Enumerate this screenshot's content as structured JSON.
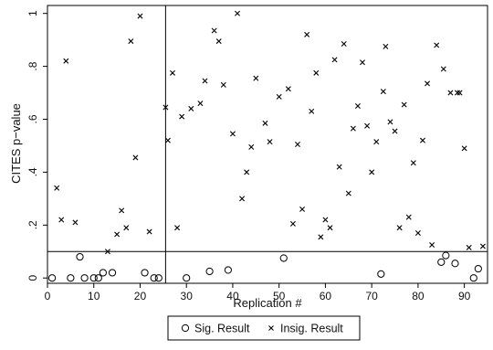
{
  "chart_data": {
    "type": "scatter",
    "xlabel": "Replication #",
    "ylabel": "CITES p−value",
    "xlim": [
      0,
      95
    ],
    "ylim": [
      -0.02,
      1.03
    ],
    "x_ticks": [
      0,
      10,
      20,
      30,
      40,
      50,
      60,
      70,
      80,
      90
    ],
    "y_ticks": [
      0,
      0.2,
      0.4,
      0.6,
      0.8,
      1
    ],
    "y_tick_labels": [
      "0",
      ".2",
      ".4",
      ".6",
      ".8",
      "1"
    ],
    "reference_lines": {
      "vertical_x": 25.5,
      "horizontal_y": 0.1
    },
    "grid": false,
    "legend_position": "bottom",
    "series": [
      {
        "name": "Sig. Result",
        "marker": "circle",
        "x": [
          1,
          5,
          7,
          8,
          10,
          11,
          12,
          14,
          21,
          23,
          24,
          30,
          35,
          39,
          51,
          72,
          85,
          86,
          88,
          92,
          93
        ],
        "y": [
          0.0,
          0.0,
          0.08,
          0.0,
          0.0,
          0.0,
          0.02,
          0.02,
          0.02,
          0.0,
          0.0,
          0.0,
          0.025,
          0.03,
          0.075,
          0.015,
          0.06,
          0.085,
          0.055,
          0.0,
          0.035
        ]
      },
      {
        "name": "Insig. Result",
        "marker": "x",
        "x": [
          2,
          3,
          4,
          6,
          13,
          15,
          16,
          17,
          18,
          19,
          20,
          22,
          25.5,
          26,
          27,
          28,
          29,
          31,
          33,
          34,
          36,
          37,
          38,
          40,
          41,
          42,
          43,
          44,
          45,
          47,
          48,
          50,
          52,
          53,
          54,
          55,
          56,
          57,
          58,
          59,
          60,
          61,
          62,
          63,
          64,
          65,
          66,
          67,
          68,
          69,
          70,
          71,
          72.5,
          73,
          74,
          75,
          76,
          77,
          78,
          79,
          80,
          81,
          82,
          83,
          84,
          85.5,
          87,
          88.5,
          89,
          90,
          91,
          94
        ],
        "y": [
          0.34,
          0.22,
          0.82,
          0.21,
          0.1,
          0.165,
          0.255,
          0.19,
          0.895,
          0.455,
          0.99,
          0.175,
          0.645,
          0.52,
          0.775,
          0.19,
          0.61,
          0.64,
          0.66,
          0.745,
          0.935,
          0.895,
          0.73,
          0.545,
          1.0,
          0.3,
          0.4,
          0.495,
          0.755,
          0.585,
          0.515,
          0.685,
          0.715,
          0.205,
          0.505,
          0.26,
          0.92,
          0.63,
          0.775,
          0.155,
          0.22,
          0.19,
          0.825,
          0.42,
          0.885,
          0.32,
          0.565,
          0.65,
          0.815,
          0.575,
          0.4,
          0.515,
          0.705,
          0.875,
          0.59,
          0.555,
          0.19,
          0.655,
          0.23,
          0.435,
          0.17,
          0.52,
          0.735,
          0.125,
          0.88,
          0.79,
          0.7,
          0.7,
          0.7,
          0.49,
          0.115,
          0.12
        ]
      }
    ]
  }
}
